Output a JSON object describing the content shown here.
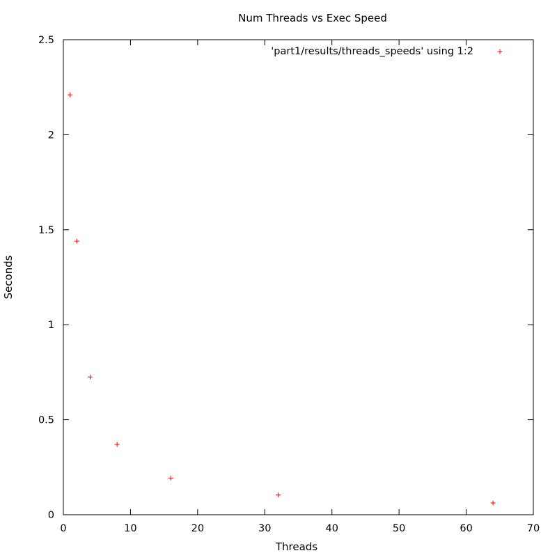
{
  "chart_data": {
    "type": "scatter",
    "title": "Num Threads vs Exec Speed",
    "xlabel": "Threads",
    "ylabel": "Seconds",
    "xlim": [
      0,
      70
    ],
    "ylim": [
      0,
      2.5
    ],
    "x_ticks": [
      0,
      10,
      20,
      30,
      40,
      50,
      60,
      70
    ],
    "y_ticks": [
      0,
      0.5,
      1,
      1.5,
      2,
      2.5
    ],
    "y_tick_labels": [
      "0",
      "0.5",
      "1",
      "1.5",
      "2",
      "2.5"
    ],
    "grid": false,
    "legend_position": "top-right",
    "marker": "+",
    "series": [
      {
        "name": "'part1/results/threads_speeds' using 1:2",
        "color": "#ff0000",
        "x": [
          1,
          2,
          4,
          8,
          16,
          32,
          64
        ],
        "y": [
          2.21,
          1.44,
          0.725,
          0.37,
          0.193,
          0.104,
          0.062
        ]
      }
    ]
  }
}
